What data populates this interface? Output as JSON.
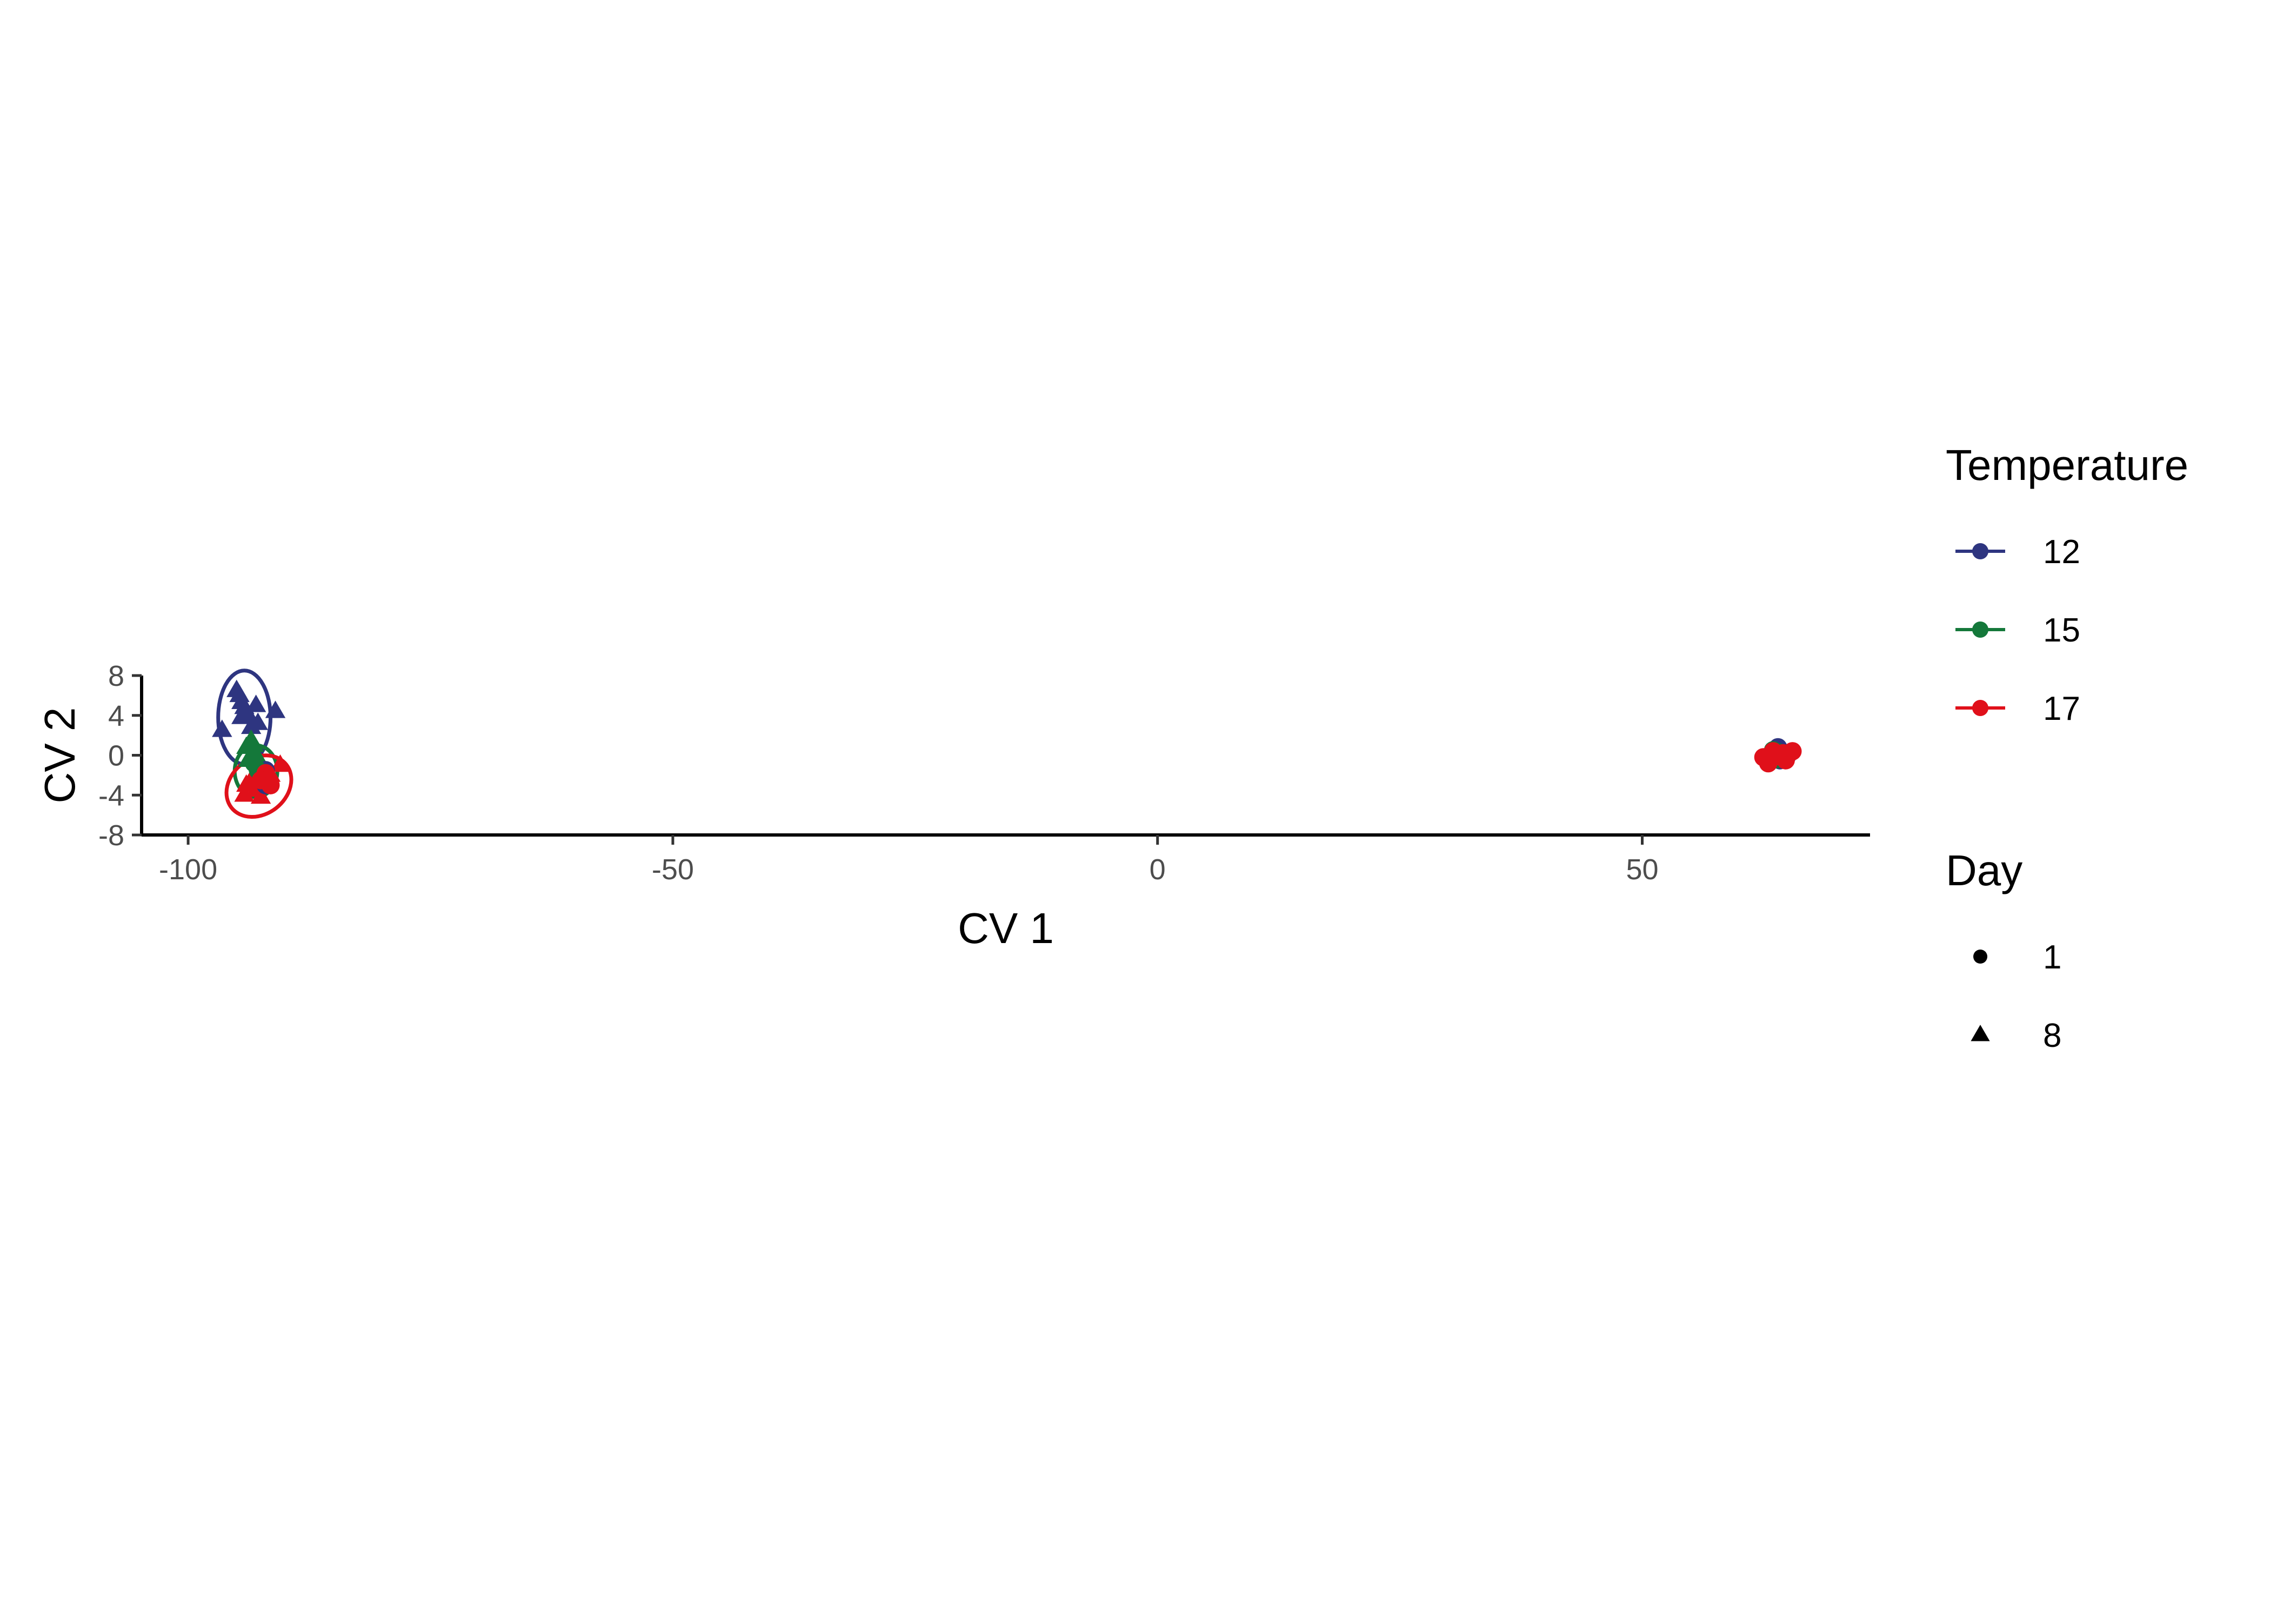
{
  "chart_data": {
    "type": "scatter",
    "xlabel": "CV 1",
    "ylabel": "CV 2",
    "xlim": [
      -104.8,
      73.5
    ],
    "ylim": [
      -8,
      8
    ],
    "x_ticks": [
      -100,
      -50,
      0,
      50
    ],
    "x_tick_labels": [
      "-100",
      "-50",
      "0",
      "50"
    ],
    "y_ticks": [
      -8,
      -4,
      0,
      4,
      8
    ],
    "y_tick_labels": [
      "-8",
      "-4",
      "0",
      "4",
      "8"
    ],
    "grid": false,
    "legend_position": "right",
    "colors": {
      "12": "#2e3580",
      "15": "#14783a",
      "17": "#e0101a"
    },
    "legends": [
      {
        "title": "Temperature",
        "kind": "color",
        "entries": [
          {
            "label": "12",
            "color": "#2e3580"
          },
          {
            "label": "15",
            "color": "#14783a"
          },
          {
            "label": "17",
            "color": "#e0101a"
          }
        ]
      },
      {
        "title": "Day",
        "kind": "shape",
        "entries": [
          {
            "label": "1",
            "shape": "circle"
          },
          {
            "label": "8",
            "shape": "triangle"
          }
        ]
      }
    ],
    "ellipses": [
      {
        "group": "12",
        "cx": -94.2,
        "cy": 3.8,
        "rx": 2.7,
        "ry": 4.7,
        "angle": 0
      },
      {
        "group": "15",
        "cx": -93.0,
        "cy": -1.6,
        "rx": 2.2,
        "ry": 2.6,
        "angle": 0
      },
      {
        "group": "17",
        "cx": -92.7,
        "cy": -3.1,
        "rx": 3.6,
        "ry": 2.8,
        "angle": -38
      },
      {
        "group": "12",
        "cx": 63.9,
        "cy": 0.0,
        "rx": 1.5,
        "ry": 0.8,
        "angle": 0
      },
      {
        "group": "15",
        "cx": 63.7,
        "cy": 0.0,
        "rx": 1.2,
        "ry": 0.7,
        "angle": 0
      },
      {
        "group": "17",
        "cx": 64.0,
        "cy": 0.0,
        "rx": 1.6,
        "ry": 0.9,
        "angle": 0
      }
    ],
    "series": [
      {
        "temperature": "12",
        "day": "8",
        "points": [
          [
            -96.5,
            2.5
          ],
          [
            -95.0,
            6.5
          ],
          [
            -94.7,
            6.0
          ],
          [
            -94.5,
            5.3
          ],
          [
            -94.2,
            4.8
          ],
          [
            -94.0,
            4.3
          ],
          [
            -94.5,
            3.8
          ],
          [
            -93.8,
            4.0
          ],
          [
            -91.0,
            4.4
          ],
          [
            -92.8,
            3.2
          ],
          [
            -93.5,
            2.8
          ],
          [
            -93.0,
            5.0
          ]
        ]
      },
      {
        "temperature": "15",
        "day": "8",
        "points": [
          [
            -93.5,
            1.5
          ],
          [
            -93.2,
            1.0
          ],
          [
            -94.0,
            0.8
          ],
          [
            -93.0,
            0.0
          ],
          [
            -93.8,
            -0.5
          ],
          [
            -92.5,
            -1.0
          ],
          [
            -92.0,
            -2.0
          ],
          [
            -93.0,
            -2.5
          ]
        ]
      },
      {
        "temperature": "17",
        "day": "8",
        "points": [
          [
            -90.5,
            -1.0
          ],
          [
            -94.0,
            -3.0
          ],
          [
            -93.0,
            -3.5
          ],
          [
            -94.2,
            -4.0
          ],
          [
            -92.5,
            -4.2
          ],
          [
            -92.0,
            -3.0
          ],
          [
            -91.5,
            -2.0
          ],
          [
            -93.5,
            -2.5
          ]
        ]
      },
      {
        "temperature": "12",
        "day": "1",
        "points": [
          [
            -92.0,
            -1.5
          ],
          [
            -92.5,
            -2.0
          ],
          [
            -92.0,
            -3.0
          ],
          [
            64.0,
            0.8
          ],
          [
            63.5,
            0.2
          ],
          [
            64.5,
            0.3
          ],
          [
            63.0,
            -0.3
          ],
          [
            64.2,
            -0.5
          ],
          [
            65.0,
            0.0
          ]
        ]
      },
      {
        "temperature": "15",
        "day": "1",
        "points": [
          [
            -92.8,
            -1.5
          ],
          [
            -92.3,
            -2.3
          ],
          [
            -93.2,
            -0.8
          ],
          [
            63.2,
            0.0
          ],
          [
            64.0,
            0.3
          ],
          [
            63.8,
            -0.4
          ],
          [
            64.6,
            -0.2
          ],
          [
            63.5,
            0.5
          ]
        ]
      },
      {
        "temperature": "17",
        "day": "1",
        "points": [
          [
            -92.0,
            -1.8
          ],
          [
            -92.5,
            -2.5
          ],
          [
            -91.5,
            -3.0
          ],
          [
            62.5,
            -0.2
          ],
          [
            63.0,
            -0.8
          ],
          [
            63.5,
            0.4
          ],
          [
            64.5,
            0.2
          ],
          [
            65.5,
            0.4
          ],
          [
            64.8,
            -0.5
          ],
          [
            63.8,
            -0.1
          ]
        ]
      }
    ]
  }
}
